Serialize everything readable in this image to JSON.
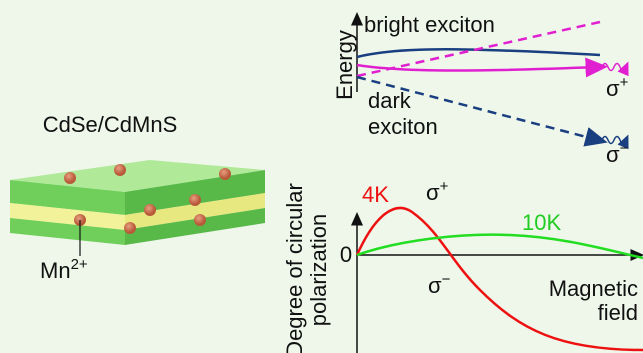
{
  "sample": {
    "title": "CdSe/CdMnS",
    "dopant": {
      "base": "Mn",
      "sup": "2+"
    }
  },
  "energy_panel": {
    "axis_label": "Energy",
    "bright_label": "bright exciton",
    "dark_label": [
      "dark",
      "exciton"
    ],
    "sigma_plus": {
      "base": "σ",
      "sup": "+"
    },
    "sigma_minus": {
      "base": "σ",
      "sup": "−"
    }
  },
  "polarization_panel": {
    "axis_label": [
      "Degree of circular",
      "polarization"
    ],
    "zero": "0",
    "x_label": [
      "Magnetic",
      "field"
    ],
    "curve_4k": "4K",
    "curve_10k": "10K",
    "sigma_plus": {
      "base": "σ",
      "sup": "+"
    },
    "sigma_minus": {
      "base": "σ",
      "sup": "−"
    }
  }
}
